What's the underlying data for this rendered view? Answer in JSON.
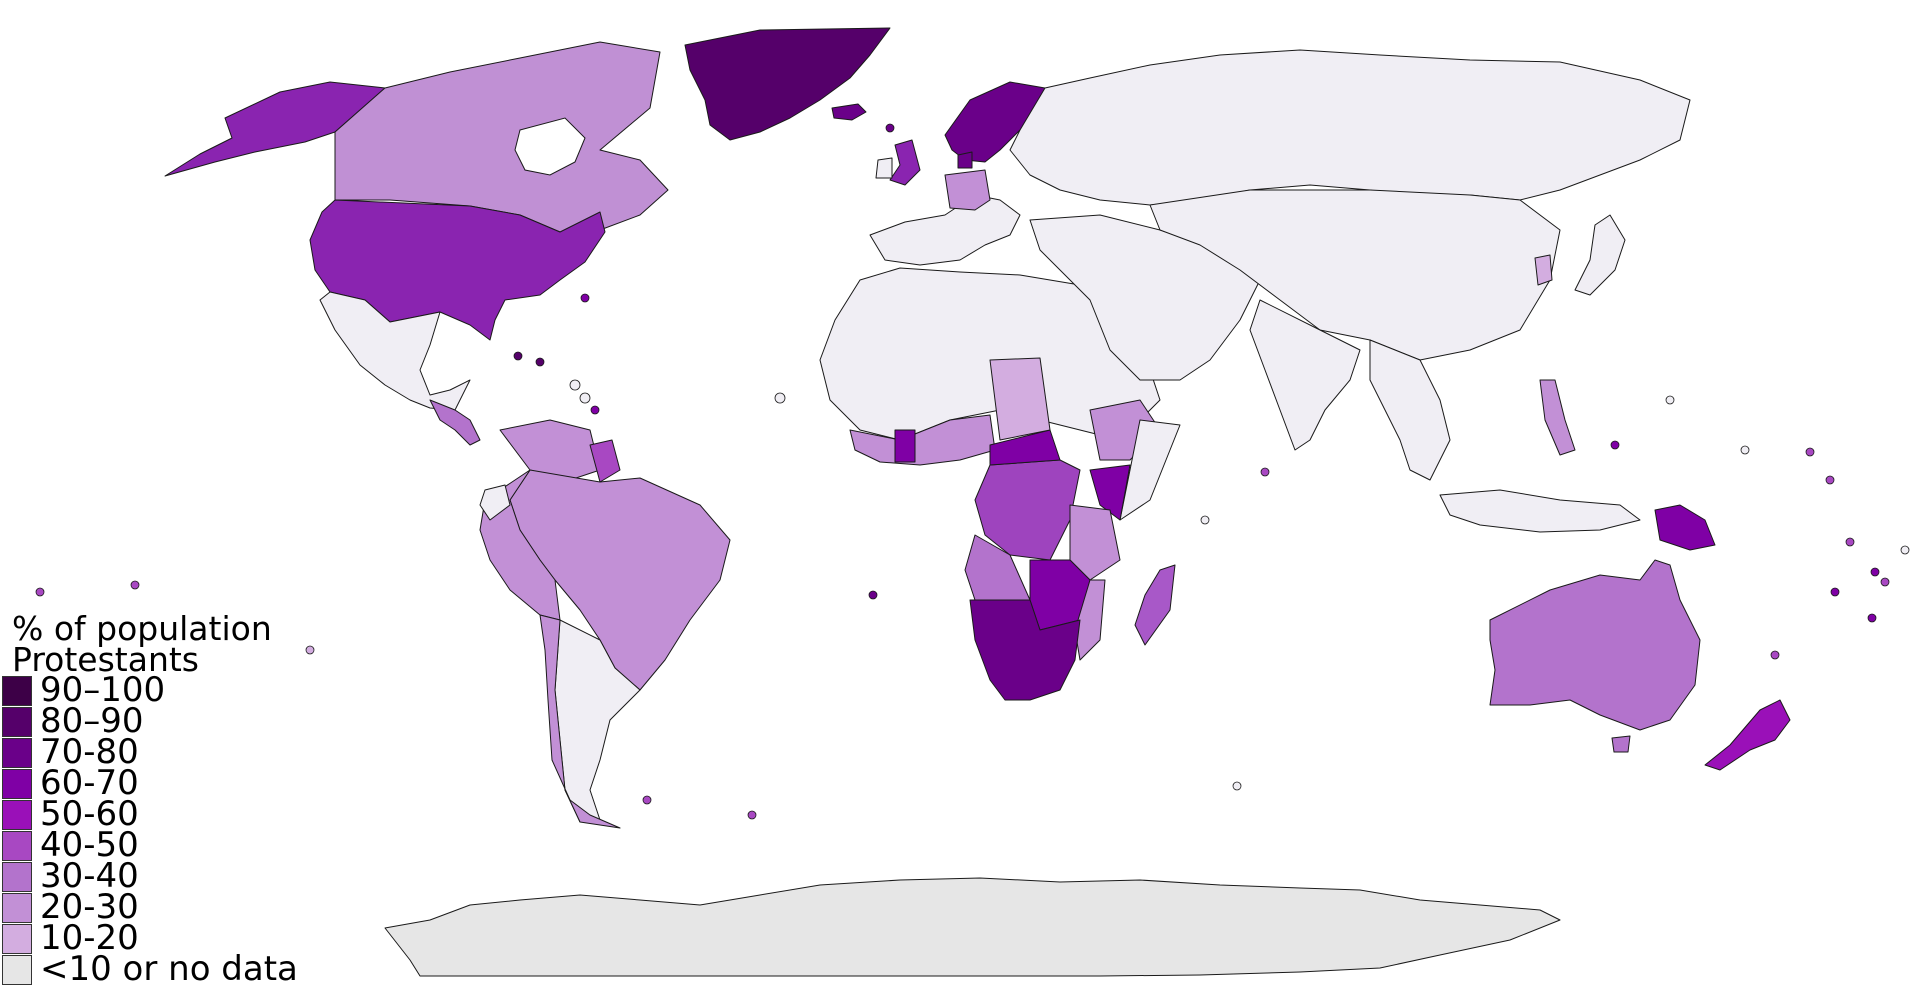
{
  "legend": {
    "title_line1": "% of population",
    "title_line2": "Protestants",
    "items": [
      {
        "label": "90–100",
        "color": "#3d0047"
      },
      {
        "label": "80–90",
        "color": "#55006a"
      },
      {
        "label": "70-80",
        "color": "#6a0089"
      },
      {
        "label": "60-70",
        "color": "#7f00a5"
      },
      {
        "label": "50-60",
        "color": "#9a10b8"
      },
      {
        "label": "40-50",
        "color": "#a848c2"
      },
      {
        "label": "30-40",
        "color": "#b373cc"
      },
      {
        "label": "20-30",
        "color": "#c290d6"
      },
      {
        "label": "10-20",
        "color": "#d3ade0"
      },
      {
        "label": "<10 or no data",
        "color": "#e6e6e6"
      }
    ]
  },
  "colors": {
    "none": "#f0eef4",
    "antarctica": "#e6e6e6",
    "ocean": "#ffffff",
    "border": "#1a1a1a"
  }
}
